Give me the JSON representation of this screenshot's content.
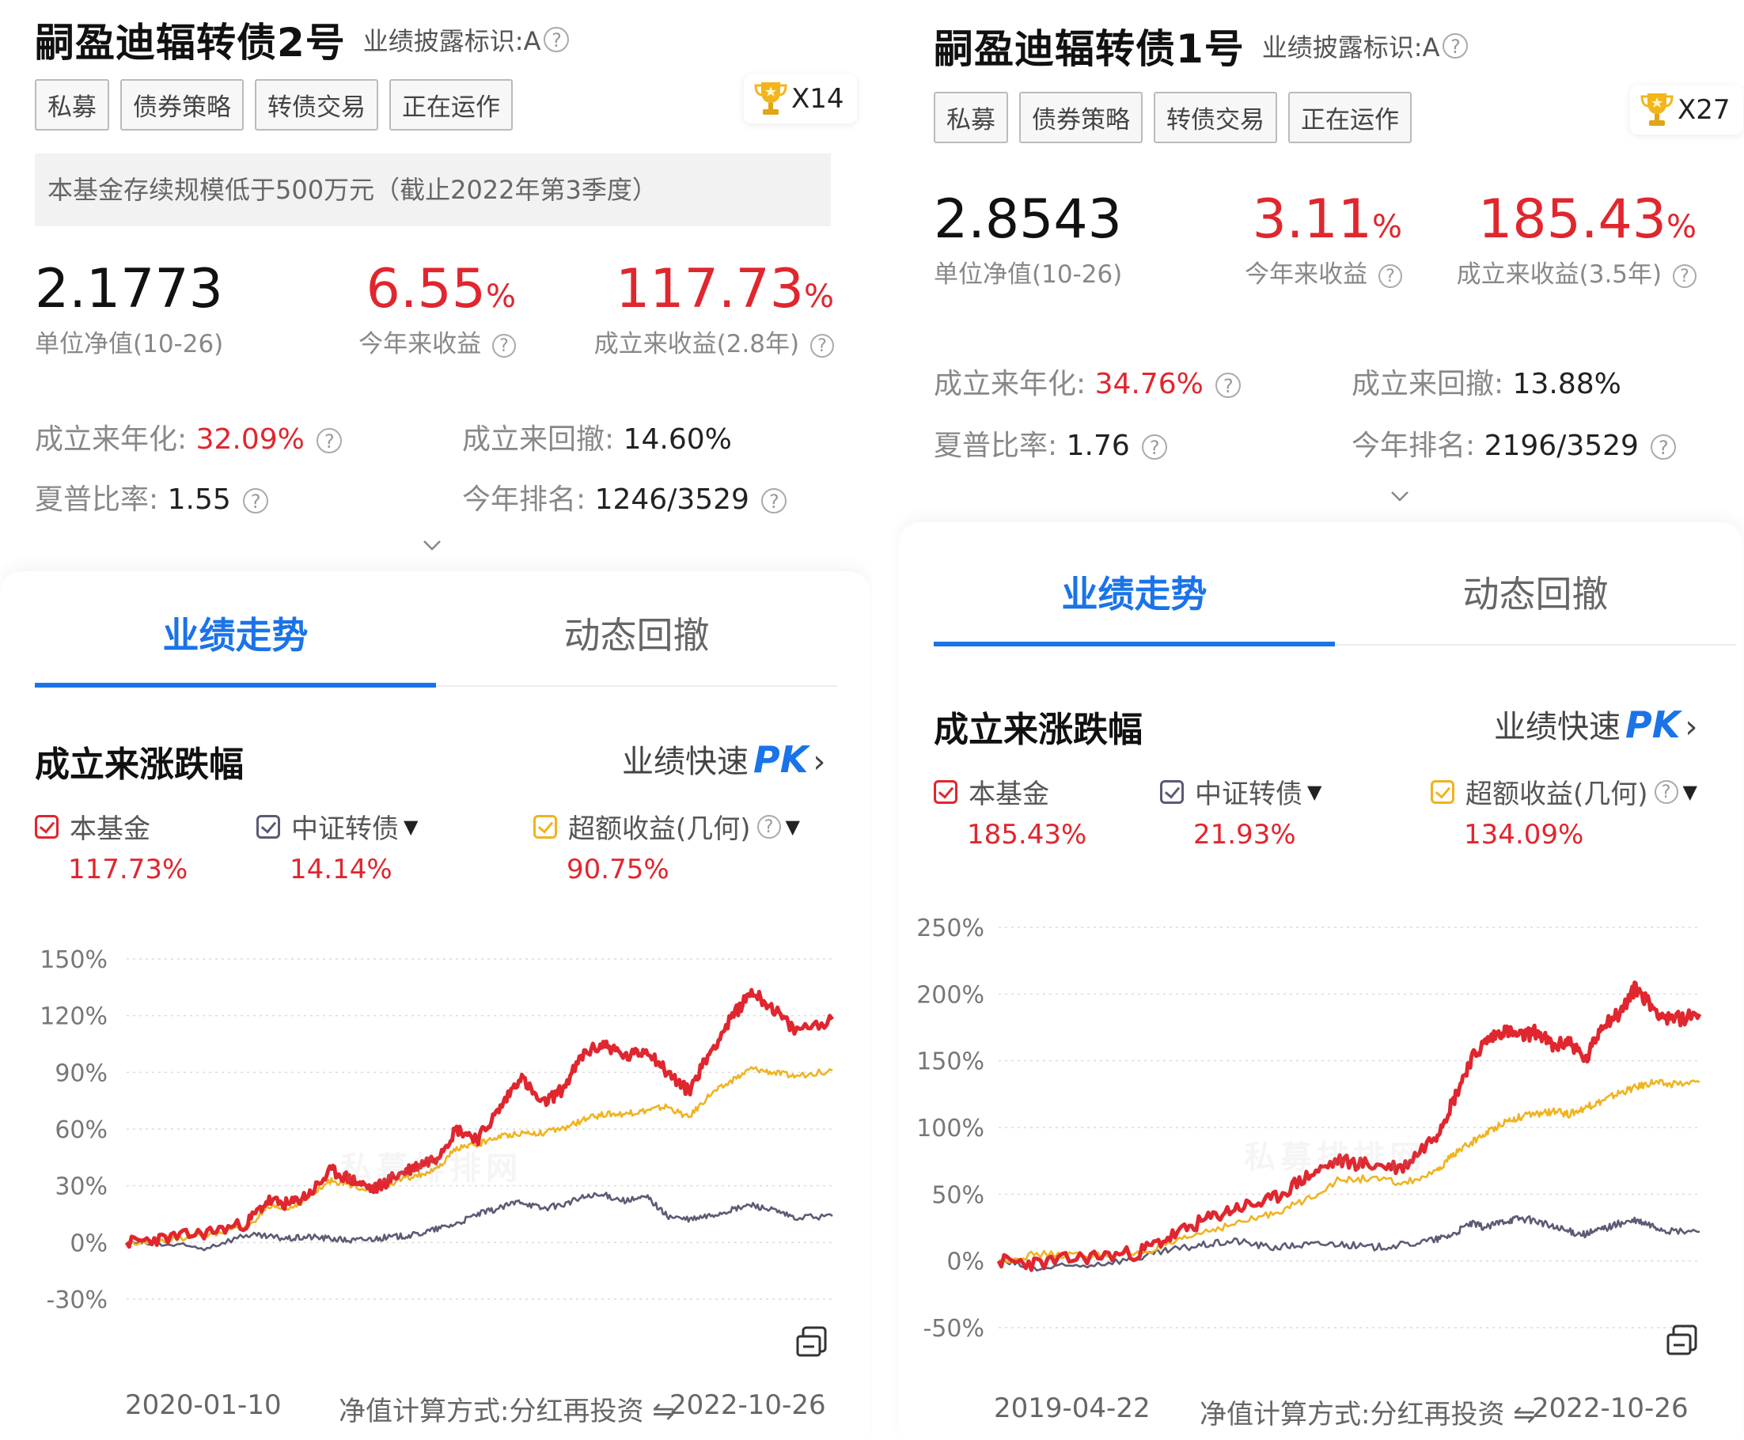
{
  "panels": [
    {
      "title": "嗣盈迪辐转债2号",
      "disclosure": "业绩披露标识:A",
      "tags": [
        "私募",
        "债券策略",
        "转债交易",
        "正在运作"
      ],
      "trophy_count": "X14",
      "notice": "本基金存续规模低于500万元（截止2022年第3季度）",
      "nav_value": "2.1773",
      "nav_label": "单位净值(10-26)",
      "ytd_value": "6.55",
      "ytd_label": "今年来收益",
      "since_value": "117.73",
      "since_label": "成立来收益(2.8年)",
      "annual_label": "成立来年化:",
      "annual_value": "32.09%",
      "drawdown_label": "成立来回撤:",
      "drawdown_value": "14.60%",
      "sharpe_label": "夏普比率:",
      "sharpe_value": "1.55",
      "rank_label": "今年排名:",
      "rank_value": "1246/3529",
      "tab_active": "业绩走势",
      "tab_inactive": "动态回撤",
      "section_title": "成立来涨跌幅",
      "pk_label": "业绩快速",
      "pk_text": "PK",
      "legend": [
        {
          "name": "本基金",
          "value": "117.73%",
          "color": "#e0262e"
        },
        {
          "name": "中证转债",
          "value": "14.14%",
          "color": "#5b5b75"
        },
        {
          "name": "超额收益(几何)",
          "value": "90.75%",
          "color": "#f0b320"
        }
      ],
      "watermark": "私募排排网",
      "footer_start": "2020-01-10",
      "footer_method": "净值计算方式:分红再投资",
      "footer_end": "2022-10-26"
    },
    {
      "title": "嗣盈迪辐转债1号",
      "disclosure": "业绩披露标识:A",
      "tags": [
        "私募",
        "债券策略",
        "转债交易",
        "正在运作"
      ],
      "trophy_count": "X27",
      "nav_value": "2.8543",
      "nav_label": "单位净值(10-26)",
      "ytd_value": "3.11",
      "ytd_label": "今年来收益",
      "since_value": "185.43",
      "since_label": "成立来收益(3.5年)",
      "annual_label": "成立来年化:",
      "annual_value": "34.76%",
      "drawdown_label": "成立来回撤:",
      "drawdown_value": "13.88%",
      "sharpe_label": "夏普比率:",
      "sharpe_value": "1.76",
      "rank_label": "今年排名:",
      "rank_value": "2196/3529",
      "tab_active": "业绩走势",
      "tab_inactive": "动态回撤",
      "section_title": "成立来涨跌幅",
      "pk_label": "业绩快速",
      "pk_text": "PK",
      "legend": [
        {
          "name": "本基金",
          "value": "185.43%",
          "color": "#e0262e"
        },
        {
          "name": "中证转债",
          "value": "21.93%",
          "color": "#5b5b75"
        },
        {
          "name": "超额收益(几何)",
          "value": "134.09%",
          "color": "#f0b320"
        }
      ],
      "watermark": "私募排排网",
      "footer_start": "2019-04-22",
      "footer_method": "净值计算方式:分红再投资",
      "footer_end": "2022-10-26"
    }
  ],
  "chart_data": [
    {
      "type": "line",
      "title": "成立来涨跌幅",
      "x_start": "2020-01-10",
      "x_end": "2022-10-26",
      "ylim": [
        -30,
        150
      ],
      "yticks": [
        "150%",
        "120%",
        "90%",
        "60%",
        "30%",
        "0%",
        "-30%"
      ],
      "yticks_values": [
        150,
        120,
        90,
        60,
        30,
        0,
        -30
      ],
      "grid": true,
      "series": [
        {
          "name": "本基金",
          "color": "#e0262e",
          "x": [
            "2020-01-10",
            "2020-03",
            "2020-05",
            "2020-07",
            "2020-08",
            "2020-09",
            "2020-10",
            "2020-11",
            "2020-12",
            "2021-01",
            "2021-02",
            "2021-03",
            "2021-04",
            "2021-05",
            "2021-06",
            "2021-07",
            "2021-08",
            "2021-09",
            "2021-10",
            "2021-11",
            "2021-12",
            "2022-01",
            "2022-02",
            "2022-03",
            "2022-04",
            "2022-05",
            "2022-06",
            "2022-07",
            "2022-08",
            "2022-09",
            "2022-10-26"
          ],
          "values": [
            0,
            2,
            5,
            10,
            22,
            20,
            26,
            38,
            33,
            28,
            35,
            40,
            45,
            60,
            55,
            70,
            88,
            73,
            81,
            100,
            105,
            98,
            102,
            90,
            80,
            100,
            118,
            133,
            124,
            112,
            118
          ]
        },
        {
          "name": "中证转债",
          "color": "#5b5b75",
          "x": [
            "2020-01-10",
            "2020-03",
            "2020-05",
            "2020-07",
            "2020-08",
            "2020-09",
            "2020-10",
            "2020-11",
            "2020-12",
            "2021-01",
            "2021-02",
            "2021-03",
            "2021-04",
            "2021-05",
            "2021-06",
            "2021-07",
            "2021-08",
            "2021-09",
            "2021-10",
            "2021-11",
            "2021-12",
            "2022-01",
            "2022-02",
            "2022-03",
            "2022-04",
            "2022-05",
            "2022-06",
            "2022-07",
            "2022-08",
            "2022-09",
            "2022-10-26"
          ],
          "values": [
            0,
            -1,
            -3,
            4,
            3,
            2,
            3,
            2,
            1,
            2,
            3,
            4,
            7,
            10,
            15,
            18,
            22,
            18,
            20,
            24,
            25,
            22,
            24,
            14,
            12,
            14,
            17,
            20,
            17,
            13,
            14
          ]
        },
        {
          "name": "超额收益(几何)",
          "color": "#f0b320",
          "x": [
            "2020-01-10",
            "2020-03",
            "2020-05",
            "2020-07",
            "2020-08",
            "2020-09",
            "2020-10",
            "2020-11",
            "2020-12",
            "2021-01",
            "2021-02",
            "2021-03",
            "2021-04",
            "2021-05",
            "2021-06",
            "2021-07",
            "2021-08",
            "2021-09",
            "2021-10",
            "2021-11",
            "2021-12",
            "2022-01",
            "2022-02",
            "2022-03",
            "2022-04",
            "2022-05",
            "2022-06",
            "2022-07",
            "2022-08",
            "2022-09",
            "2022-10-26"
          ],
          "values": [
            0,
            1,
            4,
            8,
            18,
            18,
            24,
            33,
            30,
            28,
            32,
            35,
            38,
            50,
            52,
            56,
            58,
            58,
            60,
            65,
            68,
            68,
            70,
            72,
            66,
            78,
            85,
            92,
            90,
            88,
            91
          ]
        }
      ]
    },
    {
      "type": "line",
      "title": "成立来涨跌幅",
      "x_start": "2019-04-22",
      "x_end": "2022-10-26",
      "ylim": [
        -50,
        250
      ],
      "yticks": [
        "250%",
        "200%",
        "150%",
        "100%",
        "50%",
        "0%",
        "-50%"
      ],
      "yticks_values": [
        250,
        200,
        150,
        100,
        50,
        0,
        -50
      ],
      "grid": true,
      "series": [
        {
          "name": "本基金",
          "color": "#e0262e",
          "x": [
            "2019-04-22",
            "2019-07",
            "2019-10",
            "2020-01",
            "2020-03",
            "2020-05",
            "2020-07",
            "2020-09",
            "2020-11",
            "2021-01",
            "2021-03",
            "2021-05",
            "2021-07",
            "2021-08",
            "2021-09",
            "2021-10",
            "2021-11",
            "2021-12",
            "2022-01",
            "2022-02",
            "2022-03",
            "2022-04",
            "2022-05",
            "2022-06",
            "2022-07",
            "2022-08",
            "2022-09",
            "2022-10-26"
          ],
          "values": [
            0,
            -2,
            3,
            6,
            18,
            30,
            40,
            45,
            62,
            75,
            72,
            70,
            95,
            120,
            150,
            165,
            173,
            168,
            172,
            160,
            165,
            150,
            178,
            185,
            205,
            190,
            180,
            185
          ]
        },
        {
          "name": "中证转债",
          "color": "#5b5b75",
          "x": [
            "2019-04-22",
            "2019-07",
            "2019-10",
            "2020-01",
            "2020-03",
            "2020-05",
            "2020-07",
            "2020-09",
            "2020-11",
            "2021-01",
            "2021-03",
            "2021-05",
            "2021-07",
            "2021-08",
            "2021-09",
            "2021-10",
            "2021-11",
            "2021-12",
            "2022-01",
            "2022-02",
            "2022-03",
            "2022-04",
            "2022-05",
            "2022-06",
            "2022-07",
            "2022-08",
            "2022-09",
            "2022-10-26"
          ],
          "values": [
            0,
            -6,
            -3,
            2,
            8,
            12,
            15,
            10,
            12,
            13,
            10,
            12,
            16,
            20,
            28,
            25,
            30,
            32,
            30,
            25,
            22,
            20,
            24,
            28,
            30,
            26,
            22,
            22
          ]
        },
        {
          "name": "超额收益(几何)",
          "color": "#f0b320",
          "x": [
            "2019-04-22",
            "2019-07",
            "2019-10",
            "2020-01",
            "2020-03",
            "2020-05",
            "2020-07",
            "2020-09",
            "2020-11",
            "2021-01",
            "2021-03",
            "2021-05",
            "2021-07",
            "2021-08",
            "2021-09",
            "2021-10",
            "2021-11",
            "2021-12",
            "2022-01",
            "2022-02",
            "2022-03",
            "2022-04",
            "2022-05",
            "2022-06",
            "2022-07",
            "2022-08",
            "2022-09",
            "2022-10-26"
          ],
          "values": [
            0,
            5,
            4,
            5,
            12,
            22,
            28,
            35,
            45,
            60,
            62,
            58,
            66,
            80,
            88,
            96,
            104,
            108,
            110,
            112,
            110,
            115,
            120,
            126,
            130,
            134,
            132,
            134
          ]
        }
      ]
    }
  ]
}
